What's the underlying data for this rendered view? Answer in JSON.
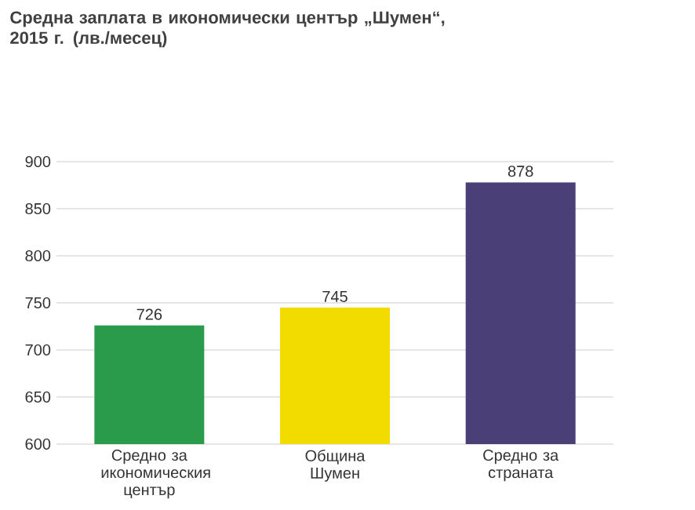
{
  "chart_data": {
    "type": "bar",
    "title": "Средна заплата в икономически център „Шумен“, 2015 г. (лв./месец)",
    "categories": [
      "Средно за икономическия център",
      "Община Шумен",
      "Средно за страната"
    ],
    "values": [
      726,
      745,
      878
    ],
    "colors": [
      "#2a9a4b",
      "#f2dc00",
      "#4b3f78"
    ],
    "ylim": [
      600,
      900
    ],
    "yticks": [
      600,
      650,
      700,
      750,
      800,
      850,
      900
    ],
    "grid": "y",
    "data_labels": true
  }
}
